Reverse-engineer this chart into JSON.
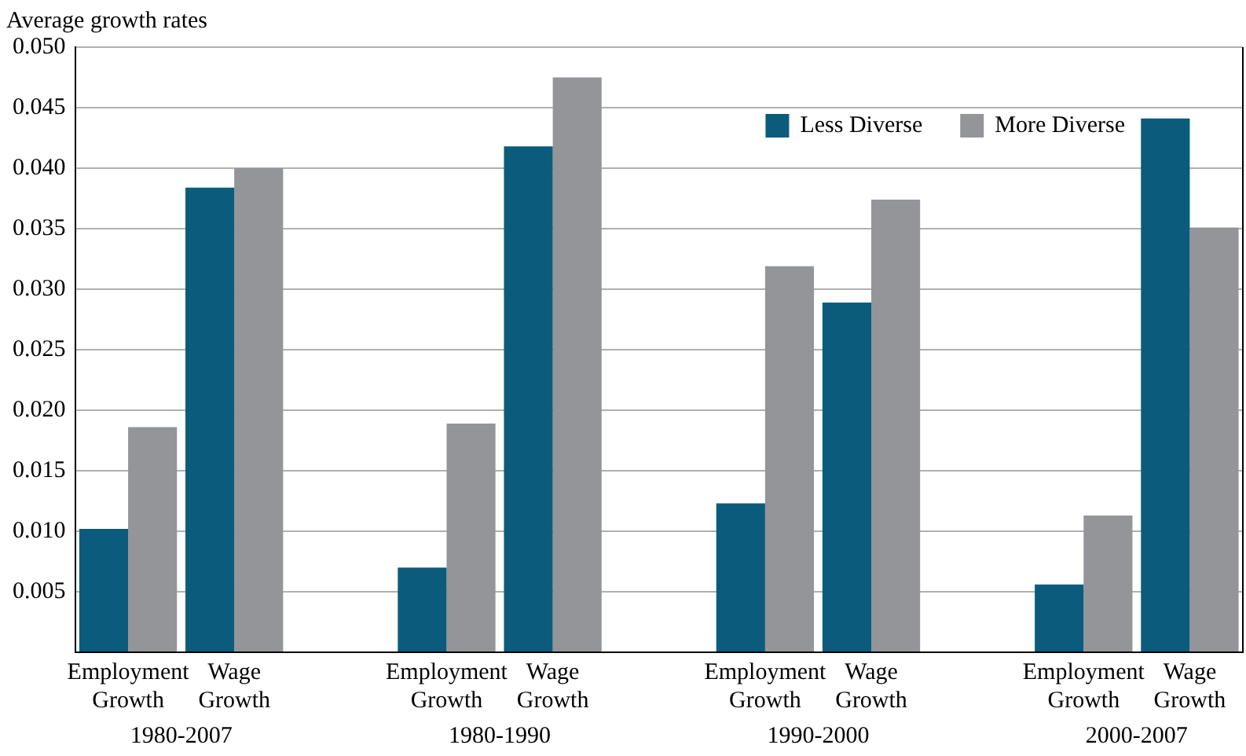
{
  "chart_data": {
    "type": "bar",
    "ylabel": "Average growth rates",
    "categories": [
      "Employment Growth",
      "Wage Growth",
      null,
      "Employment Growth",
      "Wage Growth",
      null,
      "Employment Growth",
      "Wage Growth",
      null,
      "Employment Growth",
      "Wage Growth"
    ],
    "series": [
      {
        "name": "Less Diverse",
        "color": "#0b5c7c",
        "values": [
          0.0102,
          0.0384,
          null,
          0.007,
          0.0418,
          null,
          0.0123,
          0.0289,
          null,
          0.0056,
          0.0441
        ]
      },
      {
        "name": "More Diverse",
        "color": "#939598",
        "values": [
          0.0186,
          0.04,
          null,
          0.0189,
          0.0475,
          null,
          0.0319,
          0.0374,
          null,
          0.0113,
          0.0351
        ]
      }
    ],
    "ylim": [
      0,
      0.05
    ],
    "yticks": [
      {
        "value": 0,
        "label": null
      },
      0.005,
      {
        "value": 0.01,
        "label": "0.010"
      },
      0.015,
      {
        "value": 0.02,
        "label": "0.020"
      },
      0.025,
      {
        "value": 0.03,
        "label": "0.030"
      },
      0.035,
      {
        "value": 0.04,
        "label": "0.040"
      },
      0.045,
      {
        "value": 0.05,
        "label": "0.050"
      }
    ],
    "grid": "y",
    "legend": "top right",
    "annotations": [
      "1980-2007",
      "1980-1990",
      "1990-2000",
      "2000-2007"
    ]
  }
}
